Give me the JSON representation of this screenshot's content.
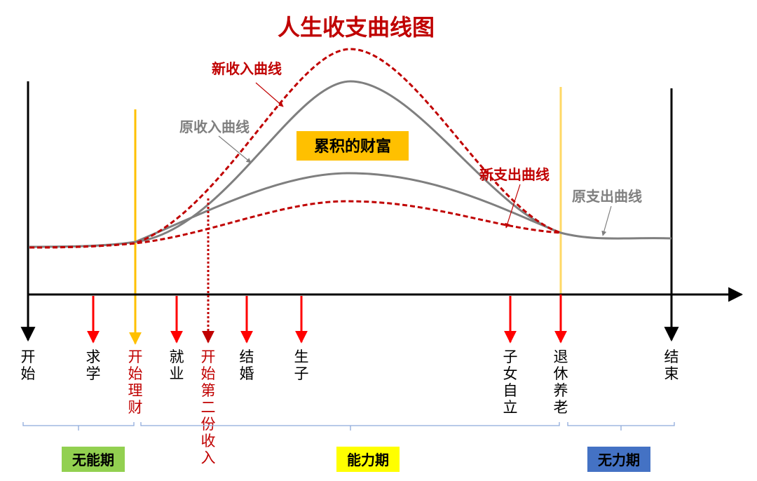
{
  "title": "人生收支曲线图",
  "curve_labels": {
    "new_income": "新收入曲线",
    "old_income": "原收入曲线",
    "new_expense": "新支出曲线",
    "old_expense": "原支出曲线"
  },
  "wealth_box": "累积的财富",
  "colors": {
    "title": "#c00000",
    "dashed_curve": "#c00000",
    "solid_curve": "#7f7f7f",
    "gold": "#ffc000",
    "event_arrow": "#ff0000",
    "axis": "#000000",
    "bracket": "#8eaadb",
    "phase_green": "#92d050",
    "phase_yellow": "#ffff00",
    "phase_blue": "#4472c4"
  },
  "stages": [
    {
      "id": "start",
      "label": "开始",
      "kind": "end",
      "color": "#000000"
    },
    {
      "id": "study",
      "label": "求学",
      "kind": "event",
      "color": "#000000"
    },
    {
      "id": "invest",
      "label": "开始理财",
      "kind": "gold",
      "color": "#c00000"
    },
    {
      "id": "employment",
      "label": "就业",
      "kind": "event",
      "color": "#000000"
    },
    {
      "id": "second-income",
      "label": "开始第二份收入",
      "kind": "dotted",
      "color": "#c00000"
    },
    {
      "id": "marriage",
      "label": "结婚",
      "kind": "event",
      "color": "#000000"
    },
    {
      "id": "childbirth",
      "label": "生子",
      "kind": "event",
      "color": "#000000"
    },
    {
      "id": "children-independent",
      "label": "子女自立",
      "kind": "event",
      "color": "#000000"
    },
    {
      "id": "retirement",
      "label": "退休养老",
      "kind": "gold",
      "color": "#000000"
    },
    {
      "id": "end",
      "label": "结束",
      "kind": "end",
      "color": "#000000"
    }
  ],
  "phases": [
    {
      "id": "incapable",
      "label": "无能期",
      "color": "#92d050",
      "text_color": "#000000"
    },
    {
      "id": "capable",
      "label": "能力期",
      "color": "#ffff00",
      "text_color": "#000000"
    },
    {
      "id": "powerless",
      "label": "无力期",
      "color": "#4472c4",
      "text_color": "#000000"
    }
  ]
}
